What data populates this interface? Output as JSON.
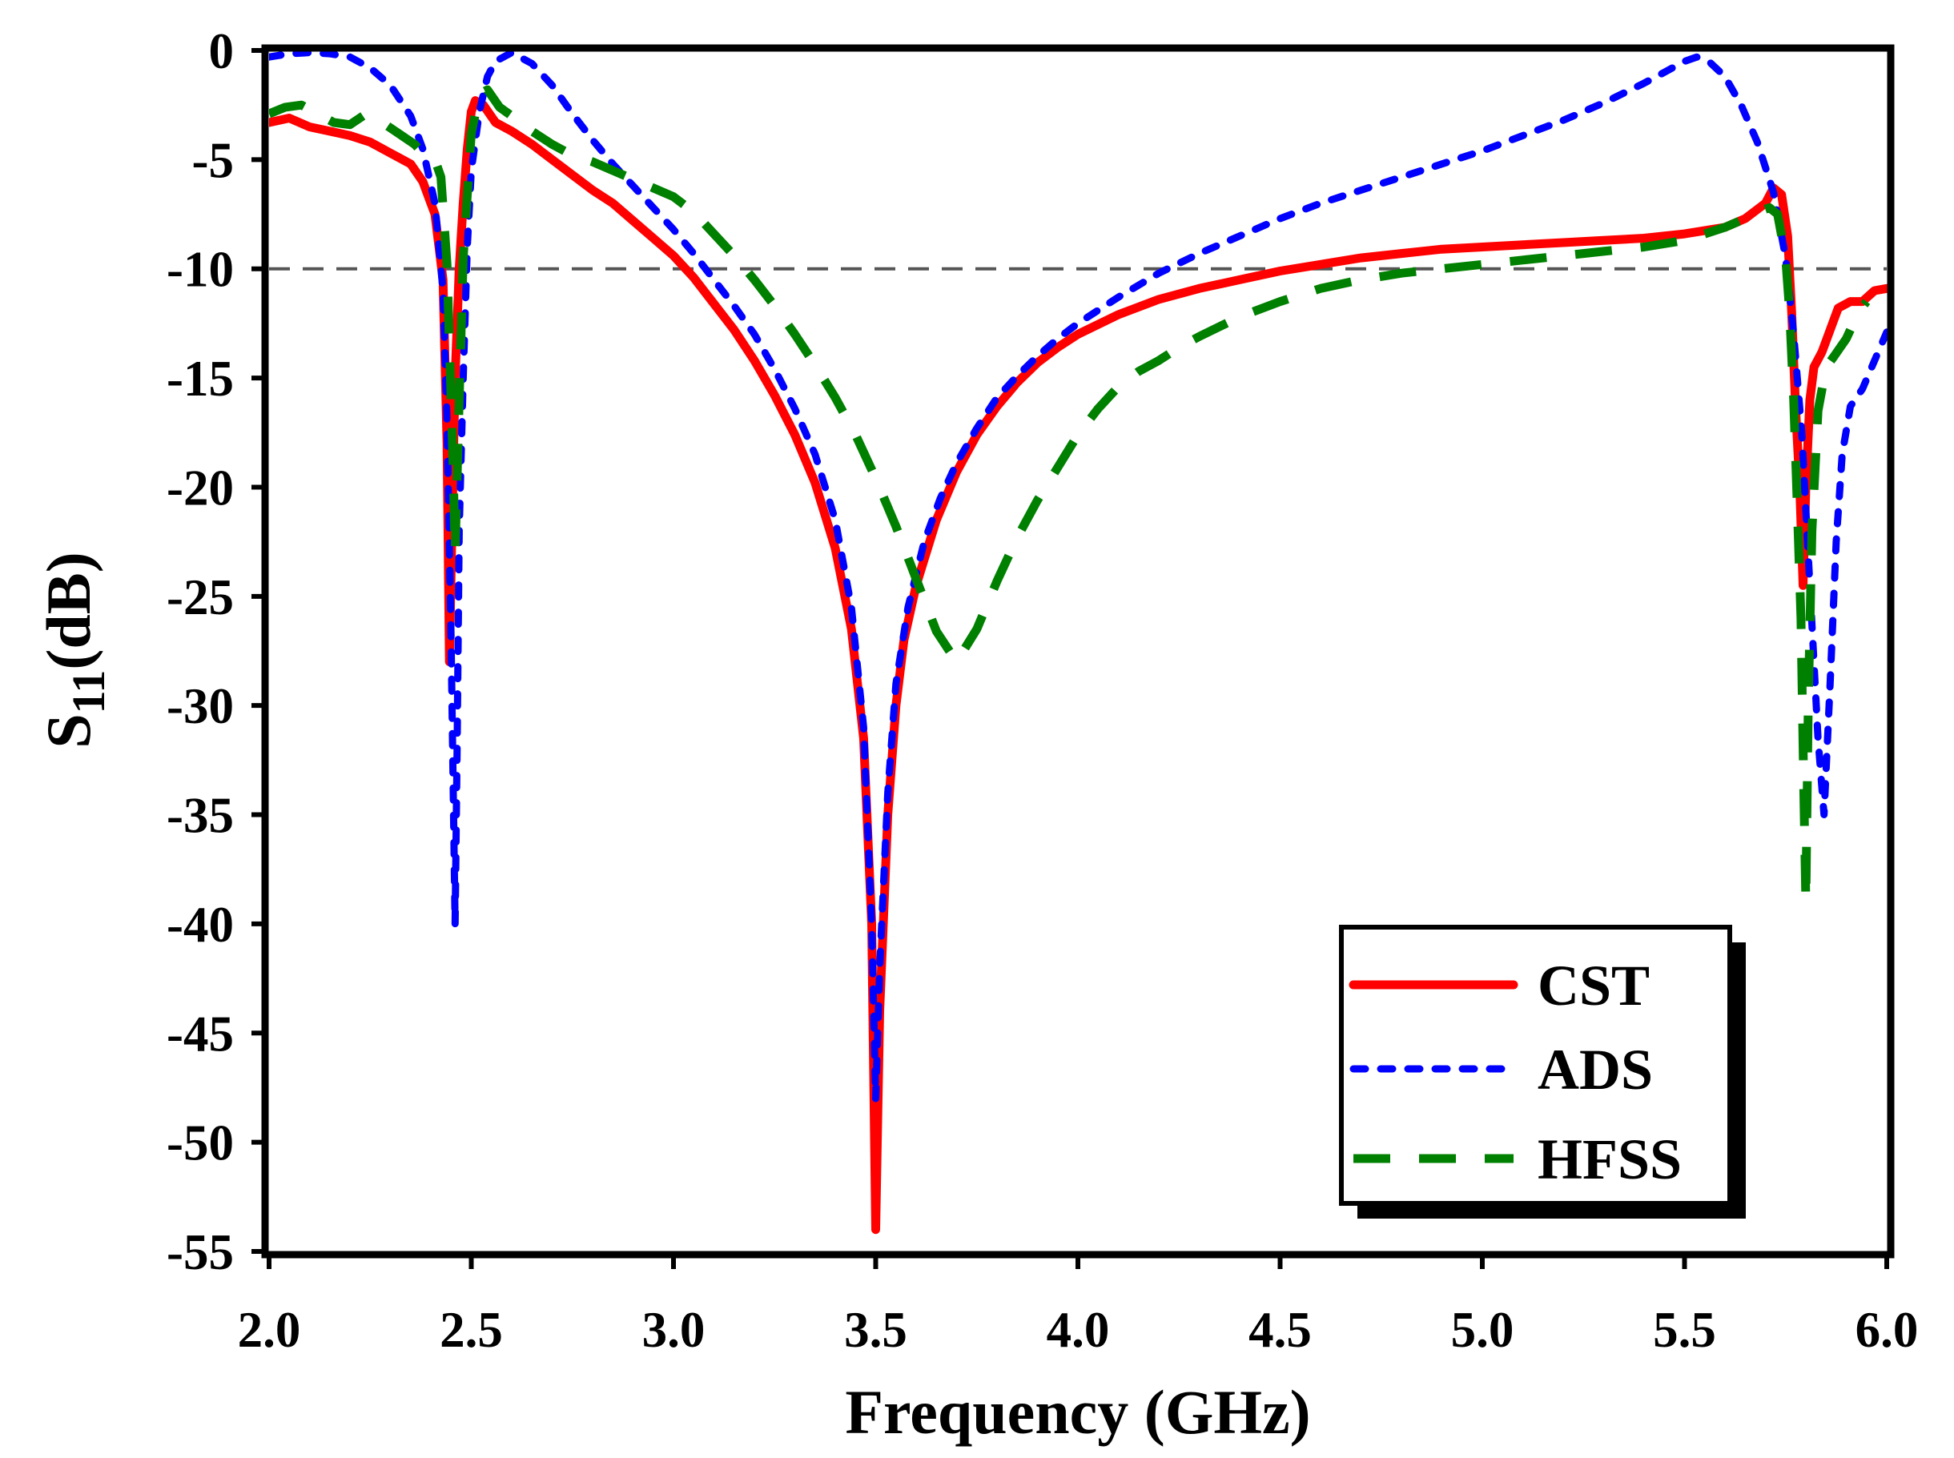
{
  "chart_data": {
    "type": "line",
    "title": "",
    "xlabel": "Frequency (GHz)",
    "ylabel": {
      "base": "S",
      "sub": "11",
      "unit": "(dB)"
    },
    "xlim": [
      2.0,
      6.0
    ],
    "ylim": [
      -55,
      0
    ],
    "xticks": [
      2.0,
      2.5,
      3.0,
      3.5,
      4.0,
      4.5,
      5.0,
      5.5,
      6.0
    ],
    "xtick_labels": [
      "2.0",
      "2.5",
      "3.0",
      "3.5",
      "4.0",
      "4.5",
      "5.0",
      "5.5",
      "6.0"
    ],
    "yticks": [
      0,
      -5,
      -10,
      -15,
      -20,
      -25,
      -30,
      -35,
      -40,
      -45,
      -50,
      -55
    ],
    "ytick_labels": [
      "0",
      "-5",
      "-10",
      "-15",
      "-20",
      "-25",
      "-30",
      "-35",
      "-40",
      "-45",
      "-50",
      "-55"
    ],
    "reference_line": {
      "y": -10,
      "style": "dashed",
      "color": "#555555"
    },
    "legend": {
      "position": "bottom-right"
    },
    "grid": false,
    "series": [
      {
        "name": "CST",
        "color": "#ff0000",
        "style": "solid",
        "points": [
          [
            2.0,
            -3.3
          ],
          [
            2.05,
            -3.1
          ],
          [
            2.1,
            -3.5
          ],
          [
            2.15,
            -3.7
          ],
          [
            2.2,
            -3.9
          ],
          [
            2.25,
            -4.2
          ],
          [
            2.3,
            -4.7
          ],
          [
            2.35,
            -5.2
          ],
          [
            2.38,
            -6.0
          ],
          [
            2.41,
            -7.5
          ],
          [
            2.43,
            -10.5
          ],
          [
            2.44,
            -18
          ],
          [
            2.446,
            -28
          ],
          [
            2.452,
            -22
          ],
          [
            2.46,
            -15
          ],
          [
            2.47,
            -10
          ],
          [
            2.48,
            -7
          ],
          [
            2.49,
            -4.5
          ],
          [
            2.5,
            -2.8
          ],
          [
            2.51,
            -2.3
          ],
          [
            2.53,
            -2.5
          ],
          [
            2.56,
            -3.3
          ],
          [
            2.6,
            -3.7
          ],
          [
            2.65,
            -4.3
          ],
          [
            2.7,
            -5.0
          ],
          [
            2.75,
            -5.7
          ],
          [
            2.8,
            -6.4
          ],
          [
            2.85,
            -7.0
          ],
          [
            2.9,
            -7.8
          ],
          [
            2.95,
            -8.6
          ],
          [
            3.0,
            -9.4
          ],
          [
            3.05,
            -10.4
          ],
          [
            3.1,
            -11.6
          ],
          [
            3.15,
            -12.8
          ],
          [
            3.2,
            -14.2
          ],
          [
            3.25,
            -15.8
          ],
          [
            3.3,
            -17.6
          ],
          [
            3.35,
            -19.8
          ],
          [
            3.4,
            -22.8
          ],
          [
            3.44,
            -26.5
          ],
          [
            3.47,
            -31.5
          ],
          [
            3.49,
            -40
          ],
          [
            3.5,
            -54
          ],
          [
            3.51,
            -44
          ],
          [
            3.53,
            -35
          ],
          [
            3.55,
            -30
          ],
          [
            3.57,
            -27
          ],
          [
            3.6,
            -24.5
          ],
          [
            3.65,
            -21.5
          ],
          [
            3.7,
            -19.3
          ],
          [
            3.75,
            -17.6
          ],
          [
            3.8,
            -16.3
          ],
          [
            3.85,
            -15.2
          ],
          [
            3.9,
            -14.3
          ],
          [
            3.95,
            -13.6
          ],
          [
            4.0,
            -13.0
          ],
          [
            4.1,
            -12.1
          ],
          [
            4.2,
            -11.4
          ],
          [
            4.3,
            -10.9
          ],
          [
            4.4,
            -10.5
          ],
          [
            4.5,
            -10.1
          ],
          [
            4.6,
            -9.8
          ],
          [
            4.7,
            -9.5
          ],
          [
            4.8,
            -9.3
          ],
          [
            4.9,
            -9.1
          ],
          [
            5.0,
            -9.0
          ],
          [
            5.1,
            -8.9
          ],
          [
            5.2,
            -8.8
          ],
          [
            5.3,
            -8.7
          ],
          [
            5.4,
            -8.6
          ],
          [
            5.5,
            -8.4
          ],
          [
            5.6,
            -8.1
          ],
          [
            5.65,
            -7.7
          ],
          [
            5.7,
            -7.0
          ],
          [
            5.72,
            -6.3
          ],
          [
            5.74,
            -6.6
          ],
          [
            5.755,
            -8.5
          ],
          [
            5.765,
            -12
          ],
          [
            5.775,
            -16.5
          ],
          [
            5.785,
            -20
          ],
          [
            5.793,
            -24.5
          ],
          [
            5.8,
            -20
          ],
          [
            5.81,
            -16
          ],
          [
            5.82,
            -14.5
          ],
          [
            5.84,
            -13.8
          ],
          [
            5.86,
            -12.8
          ],
          [
            5.88,
            -11.8
          ],
          [
            5.91,
            -11.5
          ],
          [
            5.94,
            -11.5
          ],
          [
            5.97,
            -11.0
          ],
          [
            6.0,
            -10.9
          ]
        ]
      },
      {
        "name": "ADS",
        "color": "#0000ff",
        "style": "dotted",
        "points": [
          [
            2.0,
            -0.3
          ],
          [
            2.05,
            -0.15
          ],
          [
            2.1,
            -0.1
          ],
          [
            2.15,
            -0.15
          ],
          [
            2.2,
            -0.3
          ],
          [
            2.25,
            -0.8
          ],
          [
            2.3,
            -1.6
          ],
          [
            2.35,
            -3.0
          ],
          [
            2.38,
            -4.5
          ],
          [
            2.41,
            -7.0
          ],
          [
            2.43,
            -11
          ],
          [
            2.44,
            -17
          ],
          [
            2.45,
            -27
          ],
          [
            2.46,
            -40
          ],
          [
            2.465,
            -32
          ],
          [
            2.47,
            -22
          ],
          [
            2.48,
            -15
          ],
          [
            2.49,
            -9
          ],
          [
            2.5,
            -5.5
          ],
          [
            2.52,
            -2.8
          ],
          [
            2.54,
            -1.2
          ],
          [
            2.56,
            -0.5
          ],
          [
            2.6,
            -0.1
          ],
          [
            2.65,
            -0.6
          ],
          [
            2.7,
            -1.6
          ],
          [
            2.75,
            -2.9
          ],
          [
            2.8,
            -4.1
          ],
          [
            2.85,
            -5.2
          ],
          [
            2.9,
            -6.2
          ],
          [
            2.95,
            -7.2
          ],
          [
            3.0,
            -8.2
          ],
          [
            3.05,
            -9.3
          ],
          [
            3.1,
            -10.5
          ],
          [
            3.15,
            -11.7
          ],
          [
            3.2,
            -13.0
          ],
          [
            3.25,
            -14.6
          ],
          [
            3.3,
            -16.4
          ],
          [
            3.35,
            -18.5
          ],
          [
            3.4,
            -21.5
          ],
          [
            3.44,
            -25.5
          ],
          [
            3.47,
            -31
          ],
          [
            3.49,
            -40
          ],
          [
            3.5,
            -48
          ],
          [
            3.51,
            -42
          ],
          [
            3.53,
            -34
          ],
          [
            3.55,
            -29
          ],
          [
            3.58,
            -25.5
          ],
          [
            3.62,
            -22.5
          ],
          [
            3.66,
            -20.5
          ],
          [
            3.7,
            -18.9
          ],
          [
            3.75,
            -17.3
          ],
          [
            3.8,
            -15.9
          ],
          [
            3.85,
            -14.9
          ],
          [
            3.9,
            -14.0
          ],
          [
            3.95,
            -13.2
          ],
          [
            4.0,
            -12.5
          ],
          [
            4.1,
            -11.3
          ],
          [
            4.2,
            -10.2
          ],
          [
            4.3,
            -9.3
          ],
          [
            4.4,
            -8.5
          ],
          [
            4.5,
            -7.7
          ],
          [
            4.6,
            -7.0
          ],
          [
            4.7,
            -6.4
          ],
          [
            4.8,
            -5.8
          ],
          [
            4.9,
            -5.2
          ],
          [
            5.0,
            -4.6
          ],
          [
            5.1,
            -3.9
          ],
          [
            5.2,
            -3.2
          ],
          [
            5.3,
            -2.4
          ],
          [
            5.4,
            -1.5
          ],
          [
            5.45,
            -1.0
          ],
          [
            5.5,
            -0.5
          ],
          [
            5.53,
            -0.3
          ],
          [
            5.56,
            -0.5
          ],
          [
            5.6,
            -1.2
          ],
          [
            5.64,
            -2.5
          ],
          [
            5.68,
            -4.2
          ],
          [
            5.72,
            -6.5
          ],
          [
            5.75,
            -9.5
          ],
          [
            5.77,
            -13.0
          ],
          [
            5.79,
            -17.5
          ],
          [
            5.81,
            -24.5
          ],
          [
            5.83,
            -31.5
          ],
          [
            5.845,
            -35
          ],
          [
            5.86,
            -29
          ],
          [
            5.875,
            -22.5
          ],
          [
            5.89,
            -18.5
          ],
          [
            5.91,
            -16.3
          ],
          [
            5.94,
            -15.5
          ],
          [
            5.97,
            -14.2
          ],
          [
            6.0,
            -12.9
          ]
        ]
      },
      {
        "name": "HFSS",
        "color": "#008000",
        "style": "dashed",
        "points": [
          [
            2.0,
            -2.9
          ],
          [
            2.04,
            -2.6
          ],
          [
            2.08,
            -2.5
          ],
          [
            2.12,
            -2.9
          ],
          [
            2.16,
            -3.3
          ],
          [
            2.2,
            -3.4
          ],
          [
            2.24,
            -2.9
          ],
          [
            2.28,
            -3.3
          ],
          [
            2.32,
            -3.8
          ],
          [
            2.36,
            -4.3
          ],
          [
            2.39,
            -4.9
          ],
          [
            2.41,
            -5.0
          ],
          [
            2.425,
            -5.8
          ],
          [
            2.44,
            -9.8
          ],
          [
            2.455,
            -19
          ],
          [
            2.46,
            -23
          ],
          [
            2.47,
            -16
          ],
          [
            2.48,
            -9.5
          ],
          [
            2.5,
            -3.8
          ],
          [
            2.52,
            -2.0
          ],
          [
            2.54,
            -1.8
          ],
          [
            2.57,
            -2.6
          ],
          [
            2.6,
            -3.0
          ],
          [
            2.65,
            -3.7
          ],
          [
            2.7,
            -4.3
          ],
          [
            2.75,
            -4.8
          ],
          [
            2.8,
            -5.1
          ],
          [
            2.85,
            -5.5
          ],
          [
            2.9,
            -5.9
          ],
          [
            2.95,
            -6.3
          ],
          [
            3.0,
            -6.7
          ],
          [
            3.05,
            -7.4
          ],
          [
            3.1,
            -8.4
          ],
          [
            3.15,
            -9.4
          ],
          [
            3.2,
            -10.5
          ],
          [
            3.25,
            -11.7
          ],
          [
            3.3,
            -13.0
          ],
          [
            3.35,
            -14.4
          ],
          [
            3.4,
            -15.9
          ],
          [
            3.45,
            -17.6
          ],
          [
            3.5,
            -19.6
          ],
          [
            3.55,
            -21.8
          ],
          [
            3.6,
            -24.2
          ],
          [
            3.65,
            -26.6
          ],
          [
            3.7,
            -28.0
          ],
          [
            3.75,
            -26.5
          ],
          [
            3.8,
            -24.3
          ],
          [
            3.85,
            -22.3
          ],
          [
            3.9,
            -20.6
          ],
          [
            3.95,
            -19.1
          ],
          [
            4.0,
            -17.6
          ],
          [
            4.05,
            -16.4
          ],
          [
            4.1,
            -15.4
          ],
          [
            4.15,
            -14.7
          ],
          [
            4.2,
            -14.2
          ],
          [
            4.25,
            -13.6
          ],
          [
            4.3,
            -13.1
          ],
          [
            4.4,
            -12.2
          ],
          [
            4.5,
            -11.5
          ],
          [
            4.6,
            -10.9
          ],
          [
            4.7,
            -10.5
          ],
          [
            4.8,
            -10.2
          ],
          [
            4.9,
            -10.0
          ],
          [
            5.0,
            -9.8
          ],
          [
            5.1,
            -9.6
          ],
          [
            5.2,
            -9.4
          ],
          [
            5.3,
            -9.2
          ],
          [
            5.4,
            -9.0
          ],
          [
            5.5,
            -8.7
          ],
          [
            5.55,
            -8.4
          ],
          [
            5.6,
            -8.1
          ],
          [
            5.65,
            -7.7
          ],
          [
            5.68,
            -7.4
          ],
          [
            5.71,
            -7.2
          ],
          [
            5.73,
            -7.5
          ],
          [
            5.75,
            -9.5
          ],
          [
            5.76,
            -12
          ],
          [
            5.77,
            -16
          ],
          [
            5.78,
            -21.5
          ],
          [
            5.788,
            -26
          ],
          [
            5.795,
            -34
          ],
          [
            5.8,
            -39
          ],
          [
            5.806,
            -30
          ],
          [
            5.815,
            -22
          ],
          [
            5.83,
            -16.5
          ],
          [
            5.85,
            -14.5
          ],
          [
            5.87,
            -14.0
          ],
          [
            5.9,
            -13.2
          ],
          [
            5.93,
            -12.0
          ],
          [
            5.95,
            -11.5
          ]
        ]
      }
    ]
  }
}
